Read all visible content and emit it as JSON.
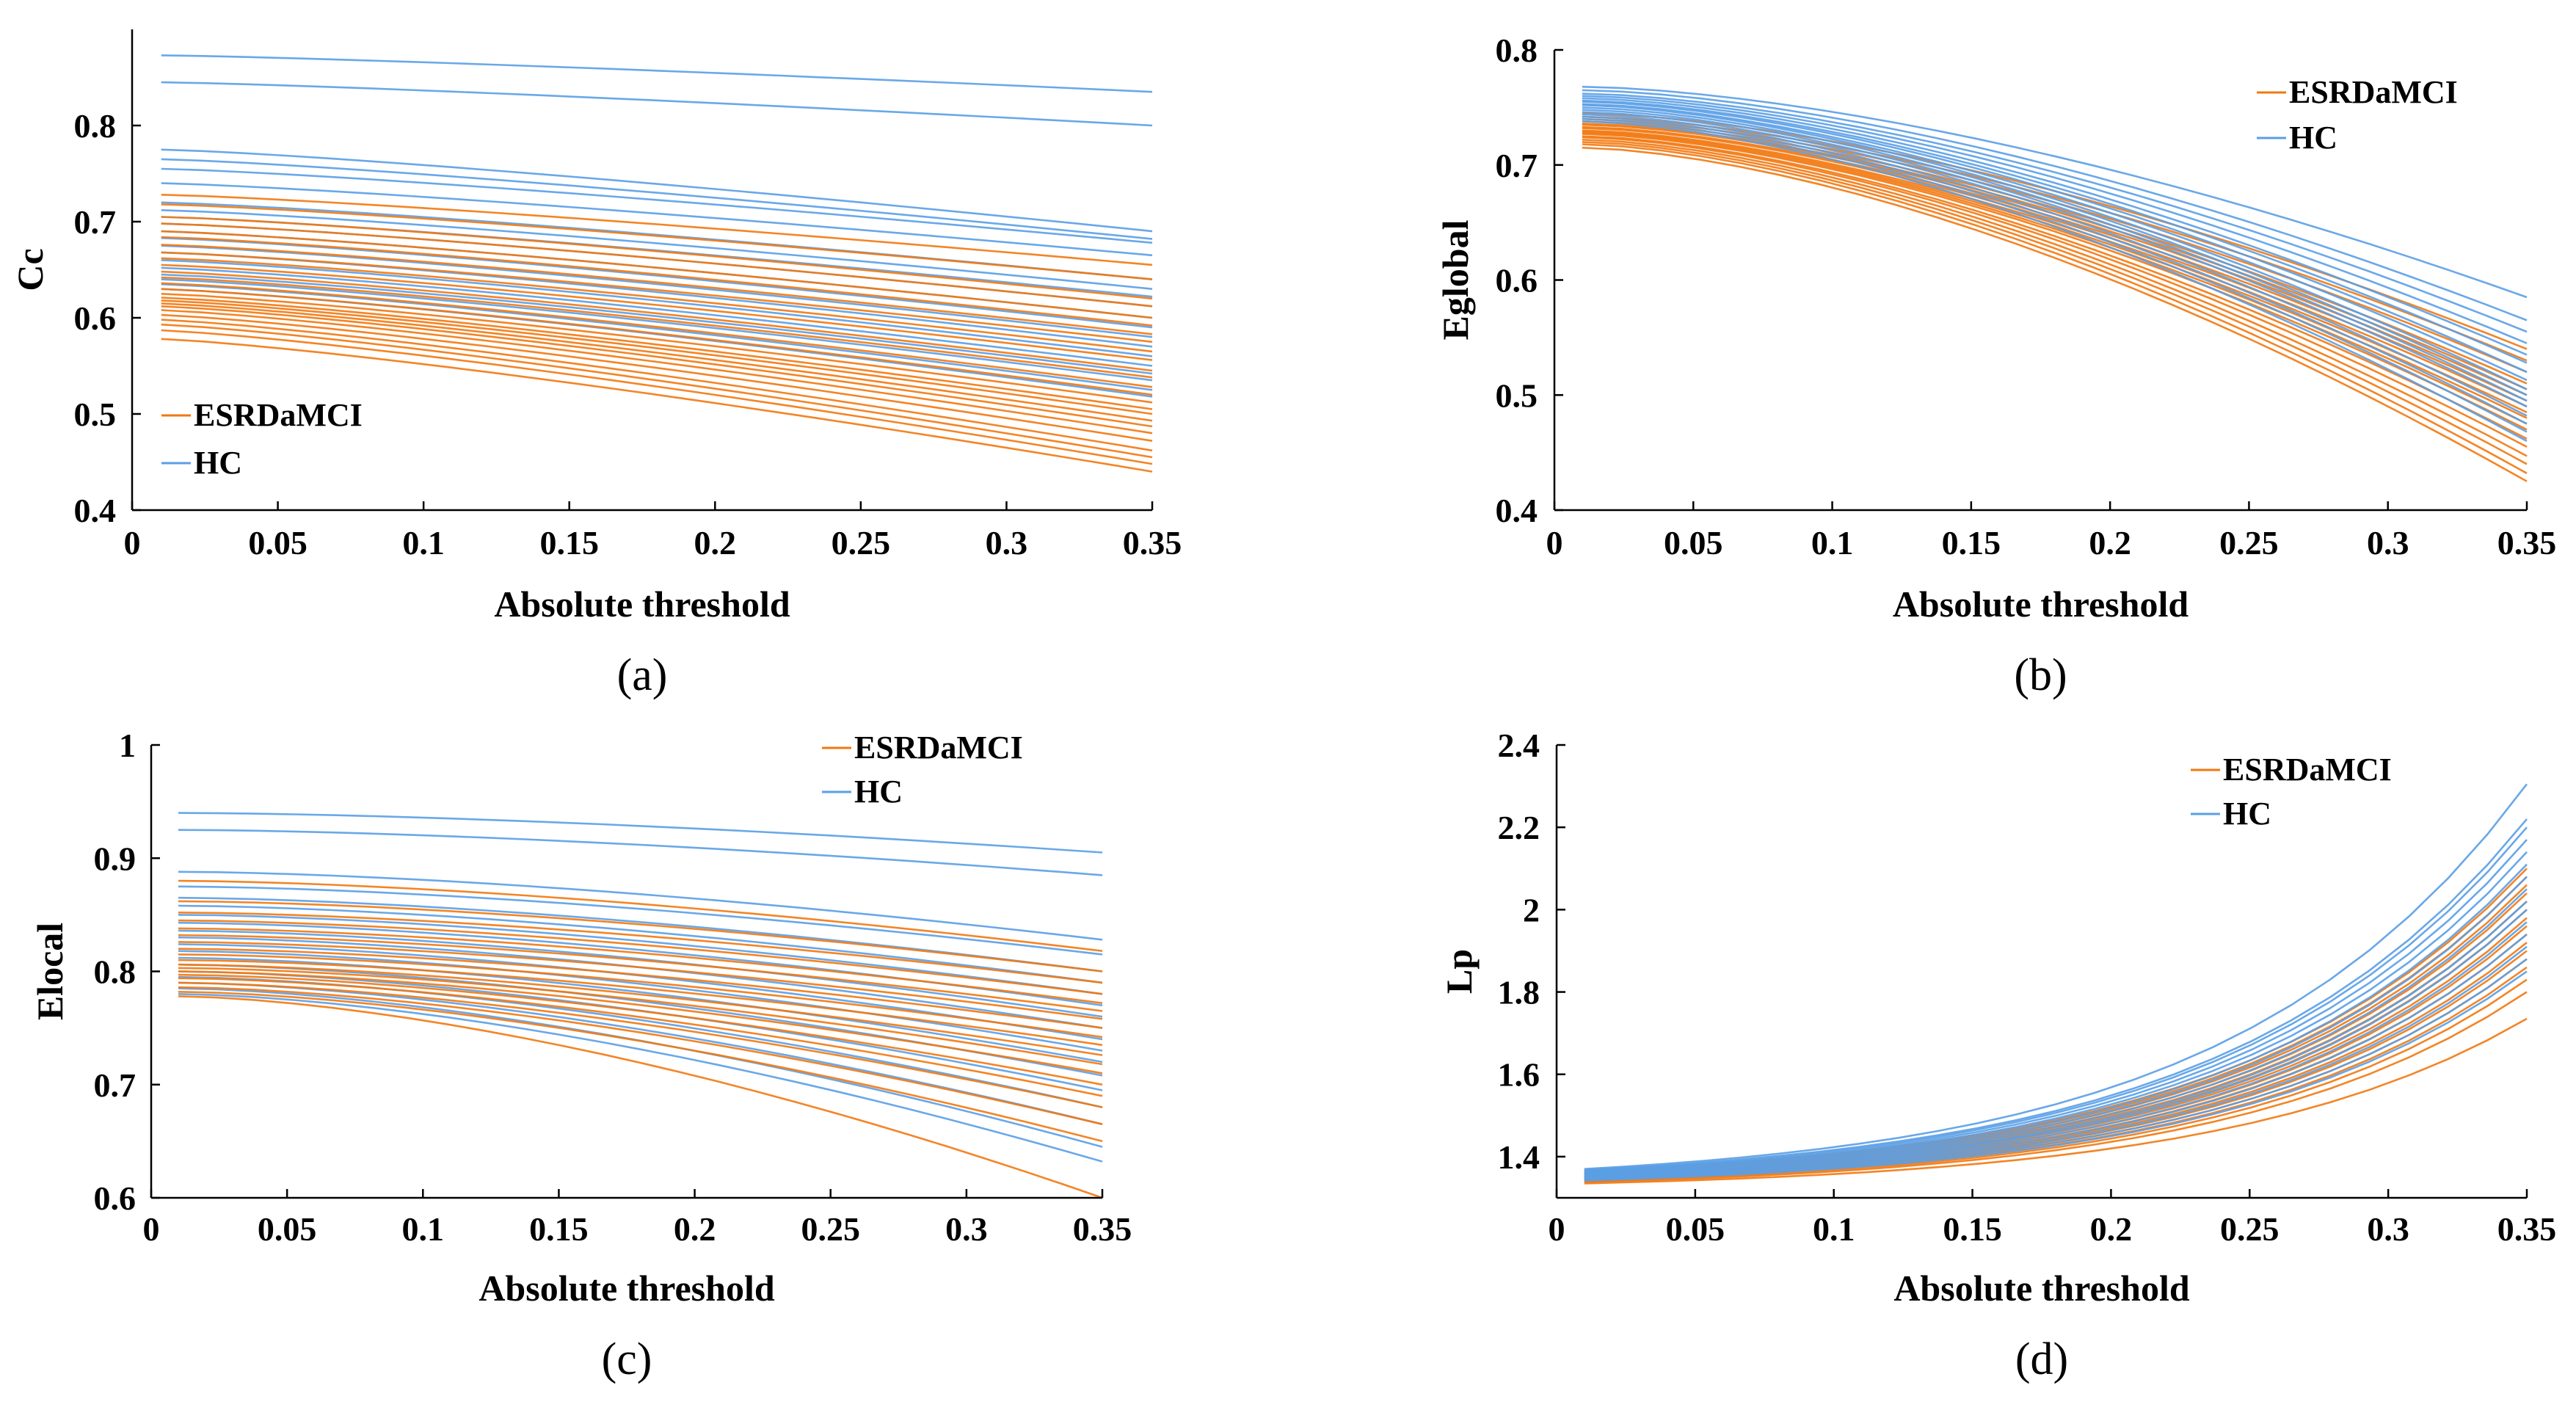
{
  "colors": {
    "ESRDaMCI": "#f2780f",
    "HC": "#5a9fe6"
  },
  "panels": [
    {
      "id": "a",
      "label": "(a)",
      "xlabel": "Absolute threshold",
      "ylabel": "Cc",
      "xlim": [
        0,
        0.35
      ],
      "ylim": [
        0.4,
        0.9
      ],
      "xticks": [
        0,
        0.05,
        0.1,
        0.15,
        0.2,
        0.25,
        0.3,
        0.35
      ],
      "xtick_labels": [
        "0",
        "0.05",
        "0.1",
        "0.15",
        "0.2",
        "0.25",
        "0.3",
        "0.35"
      ],
      "yticks": [
        0.4,
        0.5,
        0.6,
        0.7,
        0.8
      ],
      "ytick_labels": [
        "0.4",
        "0.5",
        "0.6",
        "0.7",
        "0.8"
      ],
      "legend": {
        "position": "bottom-left",
        "entries": [
          "ESRDaMCI",
          "HC"
        ]
      }
    },
    {
      "id": "b",
      "label": "(b)",
      "xlabel": "Absolute threshold",
      "ylabel": "Eglobal",
      "xlim": [
        0,
        0.35
      ],
      "ylim": [
        0.4,
        0.8
      ],
      "xticks": [
        0,
        0.05,
        0.1,
        0.15,
        0.2,
        0.25,
        0.3,
        0.35
      ],
      "xtick_labels": [
        "0",
        "0.05",
        "0.1",
        "0.15",
        "0.2",
        "0.25",
        "0.3",
        "0.35"
      ],
      "yticks": [
        0.4,
        0.5,
        0.6,
        0.7,
        0.8
      ],
      "ytick_labels": [
        "0.4",
        "0.5",
        "0.6",
        "0.7",
        "0.8"
      ],
      "legend": {
        "position": "top-right",
        "entries": [
          "ESRDaMCI",
          "HC"
        ]
      }
    },
    {
      "id": "c",
      "label": "(c)",
      "xlabel": "Absolute threshold",
      "ylabel": "Elocal",
      "xlim": [
        0,
        0.35
      ],
      "ylim": [
        0.6,
        1.0
      ],
      "xticks": [
        0,
        0.05,
        0.1,
        0.15,
        0.2,
        0.25,
        0.3,
        0.35
      ],
      "xtick_labels": [
        "0",
        "0.05",
        "0.1",
        "0.15",
        "0.2",
        "0.25",
        "0.3",
        "0.35"
      ],
      "yticks": [
        0.6,
        0.7,
        0.8,
        0.9,
        1.0
      ],
      "ytick_labels": [
        "0.6",
        "0.7",
        "0.8",
        "0.9",
        "1"
      ],
      "legend": {
        "position": "top-right",
        "entries": [
          "ESRDaMCI",
          "HC"
        ]
      }
    },
    {
      "id": "d",
      "label": "(d)",
      "xlabel": "Absolute threshold",
      "ylabel": "Lp",
      "xlim": [
        0,
        0.35
      ],
      "ylim": [
        1.3,
        2.4
      ],
      "xticks": [
        0,
        0.05,
        0.1,
        0.15,
        0.2,
        0.25,
        0.3,
        0.35
      ],
      "xtick_labels": [
        "0",
        "0.05",
        "0.1",
        "0.15",
        "0.2",
        "0.25",
        "0.3",
        "0.35"
      ],
      "yticks": [
        1.4,
        1.6,
        1.8,
        2.0,
        2.2,
        2.4
      ],
      "ytick_labels": [
        "1.4",
        "1.6",
        "1.8",
        "2",
        "2.2",
        "2.4"
      ],
      "legend": {
        "position": "top-right",
        "entries": [
          "ESRDaMCI",
          "HC"
        ]
      }
    }
  ],
  "chart_data": [
    {
      "type": "line",
      "panel": "a",
      "x": [
        0.01,
        0.35
      ],
      "xlabel": "Absolute threshold",
      "ylabel": "Cc",
      "xlim": [
        0,
        0.35
      ],
      "ylim": [
        0.4,
        0.9
      ],
      "series": [
        {
          "name": "ESRDaMCI",
          "color": "#f2780f",
          "lines": [
            [
              0.728,
              0.655
            ],
            [
              0.718,
              0.64
            ],
            [
              0.705,
              0.62
            ],
            [
              0.698,
              0.612
            ],
            [
              0.69,
              0.6
            ],
            [
              0.684,
              0.592
            ],
            [
              0.676,
              0.583
            ],
            [
              0.668,
              0.575
            ],
            [
              0.662,
              0.565
            ],
            [
              0.655,
              0.556
            ],
            [
              0.648,
              0.545
            ],
            [
              0.642,
              0.538
            ],
            [
              0.636,
              0.528
            ],
            [
              0.63,
              0.52
            ],
            [
              0.625,
              0.512
            ],
            [
              0.621,
              0.505
            ],
            [
              0.618,
              0.5
            ],
            [
              0.615,
              0.493
            ],
            [
              0.612,
              0.487
            ],
            [
              0.608,
              0.48
            ],
            [
              0.603,
              0.472
            ],
            [
              0.598,
              0.462
            ],
            [
              0.593,
              0.455
            ],
            [
              0.587,
              0.448
            ],
            [
              0.578,
              0.44
            ]
          ]
        },
        {
          "name": "HC",
          "color": "#5a9fe6",
          "lines": [
            [
              0.873,
              0.835
            ],
            [
              0.845,
              0.8
            ],
            [
              0.775,
              0.69
            ],
            [
              0.765,
              0.682
            ],
            [
              0.755,
              0.678
            ],
            [
              0.74,
              0.665
            ],
            [
              0.72,
              0.64
            ],
            [
              0.712,
              0.63
            ],
            [
              0.705,
              0.622
            ],
            [
              0.698,
              0.612
            ],
            [
              0.69,
              0.6
            ],
            [
              0.683,
              0.59
            ],
            [
              0.675,
              0.58
            ],
            [
              0.668,
              0.57
            ],
            [
              0.66,
              0.56
            ],
            [
              0.652,
              0.55
            ],
            [
              0.645,
              0.542
            ],
            [
              0.64,
              0.535
            ],
            [
              0.635,
              0.525
            ],
            [
              0.63,
              0.518
            ]
          ]
        }
      ],
      "legend": [
        "ESRDaMCI",
        "HC"
      ]
    },
    {
      "type": "line",
      "panel": "b",
      "x": [
        0.01,
        0.35
      ],
      "xlabel": "Absolute threshold",
      "ylabel": "Eglobal",
      "xlim": [
        0,
        0.35
      ],
      "ylim": [
        0.4,
        0.8
      ],
      "series": [
        {
          "name": "ESRDaMCI",
          "color": "#f2780f",
          "lines": [
            [
              0.745,
              0.54
            ],
            [
              0.742,
              0.53
            ],
            [
              0.74,
              0.52
            ],
            [
              0.738,
              0.51
            ],
            [
              0.736,
              0.505
            ],
            [
              0.735,
              0.5
            ],
            [
              0.733,
              0.495
            ],
            [
              0.732,
              0.49
            ],
            [
              0.73,
              0.485
            ],
            [
              0.729,
              0.48
            ],
            [
              0.728,
              0.475
            ],
            [
              0.727,
              0.47
            ],
            [
              0.725,
              0.462
            ],
            [
              0.724,
              0.455
            ],
            [
              0.722,
              0.447
            ],
            [
              0.72,
              0.44
            ],
            [
              0.718,
              0.432
            ],
            [
              0.715,
              0.425
            ]
          ]
        },
        {
          "name": "HC",
          "color": "#5a9fe6",
          "lines": [
            [
              0.768,
              0.585
            ],
            [
              0.765,
              0.565
            ],
            [
              0.762,
              0.555
            ],
            [
              0.76,
              0.545
            ],
            [
              0.758,
              0.535
            ],
            [
              0.756,
              0.528
            ],
            [
              0.755,
              0.52
            ],
            [
              0.753,
              0.513
            ],
            [
              0.752,
              0.505
            ],
            [
              0.75,
              0.5
            ],
            [
              0.748,
              0.495
            ],
            [
              0.746,
              0.49
            ],
            [
              0.744,
              0.482
            ],
            [
              0.742,
              0.475
            ],
            [
              0.74,
              0.468
            ],
            [
              0.738,
              0.46
            ]
          ]
        }
      ],
      "legend": [
        "ESRDaMCI",
        "HC"
      ]
    },
    {
      "type": "line",
      "panel": "c",
      "x": [
        0.01,
        0.35
      ],
      "xlabel": "Absolute threshold",
      "ylabel": "Elocal",
      "xlim": [
        0,
        0.35
      ],
      "ylim": [
        0.6,
        1.0
      ],
      "series": [
        {
          "name": "ESRDaMCI",
          "color": "#f2780f",
          "lines": [
            [
              0.88,
              0.818
            ],
            [
              0.862,
              0.8
            ],
            [
              0.852,
              0.79
            ],
            [
              0.845,
              0.78
            ],
            [
              0.838,
              0.772
            ],
            [
              0.832,
              0.765
            ],
            [
              0.826,
              0.758
            ],
            [
              0.82,
              0.75
            ],
            [
              0.815,
              0.742
            ],
            [
              0.81,
              0.735
            ],
            [
              0.806,
              0.726
            ],
            [
              0.803,
              0.718
            ],
            [
              0.8,
              0.71
            ],
            [
              0.797,
              0.7
            ],
            [
              0.794,
              0.69
            ],
            [
              0.79,
              0.68
            ],
            [
              0.786,
              0.665
            ],
            [
              0.782,
              0.65
            ],
            [
              0.778,
              0.6
            ]
          ]
        },
        {
          "name": "HC",
          "color": "#5a9fe6",
          "lines": [
            [
              0.94,
              0.905
            ],
            [
              0.925,
              0.885
            ],
            [
              0.888,
              0.828
            ],
            [
              0.875,
              0.815
            ],
            [
              0.865,
              0.8
            ],
            [
              0.858,
              0.79
            ],
            [
              0.85,
              0.78
            ],
            [
              0.843,
              0.77
            ],
            [
              0.836,
              0.76
            ],
            [
              0.83,
              0.75
            ],
            [
              0.824,
              0.74
            ],
            [
              0.818,
              0.73
            ],
            [
              0.812,
              0.72
            ],
            [
              0.806,
              0.708
            ],
            [
              0.8,
              0.695
            ],
            [
              0.795,
              0.68
            ],
            [
              0.79,
              0.665
            ],
            [
              0.785,
              0.645
            ],
            [
              0.78,
              0.632
            ]
          ]
        }
      ],
      "legend": [
        "ESRDaMCI",
        "HC"
      ]
    },
    {
      "type": "line",
      "panel": "d",
      "x": [
        0.01,
        0.35
      ],
      "xlabel": "Absolute threshold",
      "ylabel": "Lp",
      "xlim": [
        0,
        0.35
      ],
      "ylim": [
        1.3,
        2.4
      ],
      "series": [
        {
          "name": "ESRDaMCI",
          "color": "#f2780f",
          "lines": [
            [
              1.335,
              1.735
            ],
            [
              1.338,
              1.8
            ],
            [
              1.34,
              1.83
            ],
            [
              1.342,
              1.86
            ],
            [
              1.344,
              1.88
            ],
            [
              1.346,
              1.9
            ],
            [
              1.348,
              1.92
            ],
            [
              1.35,
              1.94
            ],
            [
              1.352,
              1.96
            ],
            [
              1.354,
              1.98
            ],
            [
              1.356,
              2.0
            ],
            [
              1.358,
              2.02
            ],
            [
              1.36,
              2.04
            ],
            [
              1.362,
              2.06
            ],
            [
              1.364,
              2.08
            ],
            [
              1.366,
              2.1
            ]
          ]
        },
        {
          "name": "HC",
          "color": "#5a9fe6",
          "lines": [
            [
              1.37,
              2.305
            ],
            [
              1.368,
              2.22
            ],
            [
              1.366,
              2.2
            ],
            [
              1.364,
              2.17
            ],
            [
              1.362,
              2.14
            ],
            [
              1.36,
              2.11
            ],
            [
              1.358,
              2.08
            ],
            [
              1.356,
              2.05
            ],
            [
              1.354,
              2.02
            ],
            [
              1.352,
              2.0
            ],
            [
              1.35,
              1.97
            ],
            [
              1.348,
              1.94
            ],
            [
              1.346,
              1.91
            ],
            [
              1.344,
              1.88
            ],
            [
              1.342,
              1.85
            ]
          ]
        }
      ],
      "legend": [
        "ESRDaMCI",
        "HC"
      ]
    }
  ]
}
